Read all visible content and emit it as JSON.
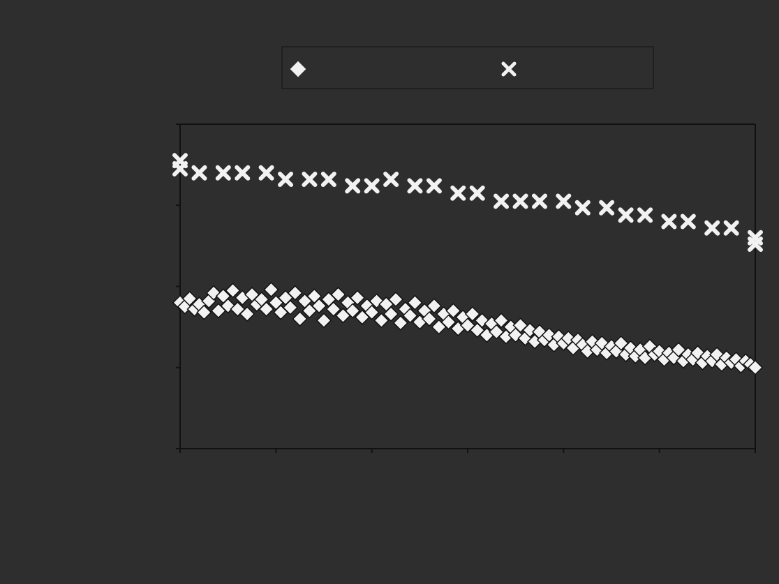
{
  "chart_data": {
    "type": "scatter",
    "title": "",
    "xlabel": "",
    "ylabel": "",
    "x_ticks": [],
    "y_ticks": [],
    "xlim": [
      0,
      120
    ],
    "ylim": [
      0,
      4
    ],
    "grid": false,
    "legend_position": "top",
    "legend_box": true,
    "colors": {
      "background": "#2e2e2e",
      "marker": "#f2f2f2",
      "axis": "#111111"
    },
    "series": [
      {
        "marker": "diamond",
        "points": [
          [
            0,
            1.8
          ],
          [
            1,
            1.75
          ],
          [
            2,
            1.85
          ],
          [
            3,
            1.72
          ],
          [
            4,
            1.78
          ],
          [
            5,
            1.68
          ],
          [
            6,
            1.82
          ],
          [
            7,
            1.92
          ],
          [
            8,
            1.7
          ],
          [
            9,
            1.88
          ],
          [
            10,
            1.76
          ],
          [
            11,
            1.95
          ],
          [
            12,
            1.72
          ],
          [
            13,
            1.86
          ],
          [
            14,
            1.66
          ],
          [
            15,
            1.9
          ],
          [
            16,
            1.78
          ],
          [
            17,
            1.84
          ],
          [
            18,
            1.72
          ],
          [
            19,
            1.96
          ],
          [
            20,
            1.8
          ],
          [
            21,
            1.68
          ],
          [
            22,
            1.86
          ],
          [
            23,
            1.74
          ],
          [
            24,
            1.92
          ],
          [
            25,
            1.6
          ],
          [
            26,
            1.82
          ],
          [
            27,
            1.7
          ],
          [
            28,
            1.88
          ],
          [
            29,
            1.76
          ],
          [
            30,
            1.58
          ],
          [
            31,
            1.84
          ],
          [
            32,
            1.72
          ],
          [
            33,
            1.9
          ],
          [
            34,
            1.64
          ],
          [
            35,
            1.8
          ],
          [
            36,
            1.7
          ],
          [
            37,
            1.86
          ],
          [
            38,
            1.62
          ],
          [
            39,
            1.76
          ],
          [
            40,
            1.68
          ],
          [
            41,
            1.82
          ],
          [
            42,
            1.58
          ],
          [
            43,
            1.78
          ],
          [
            44,
            1.66
          ],
          [
            45,
            1.84
          ],
          [
            46,
            1.55
          ],
          [
            47,
            1.72
          ],
          [
            48,
            1.64
          ],
          [
            49,
            1.8
          ],
          [
            50,
            1.56
          ],
          [
            51,
            1.7
          ],
          [
            52,
            1.6
          ],
          [
            53,
            1.76
          ],
          [
            54,
            1.5
          ],
          [
            55,
            1.66
          ],
          [
            56,
            1.56
          ],
          [
            57,
            1.7
          ],
          [
            58,
            1.48
          ],
          [
            59,
            1.62
          ],
          [
            60,
            1.52
          ],
          [
            61,
            1.66
          ],
          [
            62,
            1.46
          ],
          [
            63,
            1.58
          ],
          [
            64,
            1.4
          ],
          [
            65,
            1.54
          ],
          [
            66,
            1.44
          ],
          [
            67,
            1.58
          ],
          [
            68,
            1.38
          ],
          [
            69,
            1.5
          ],
          [
            70,
            1.4
          ],
          [
            71,
            1.52
          ],
          [
            72,
            1.36
          ],
          [
            73,
            1.46
          ],
          [
            74,
            1.32
          ],
          [
            75,
            1.44
          ],
          [
            76,
            1.34
          ],
          [
            77,
            1.4
          ],
          [
            78,
            1.28
          ],
          [
            79,
            1.38
          ],
          [
            80,
            1.3
          ],
          [
            81,
            1.36
          ],
          [
            82,
            1.24
          ],
          [
            83,
            1.34
          ],
          [
            84,
            1.28
          ],
          [
            85,
            1.2
          ],
          [
            86,
            1.32
          ],
          [
            87,
            1.22
          ],
          [
            88,
            1.3
          ],
          [
            89,
            1.18
          ],
          [
            90,
            1.26
          ],
          [
            91,
            1.2
          ],
          [
            92,
            1.3
          ],
          [
            93,
            1.16
          ],
          [
            94,
            1.24
          ],
          [
            95,
            1.14
          ],
          [
            96,
            1.22
          ],
          [
            97,
            1.12
          ],
          [
            98,
            1.26
          ],
          [
            99,
            1.16
          ],
          [
            100,
            1.2
          ],
          [
            101,
            1.1
          ],
          [
            102,
            1.18
          ],
          [
            103,
            1.12
          ],
          [
            104,
            1.22
          ],
          [
            105,
            1.08
          ],
          [
            106,
            1.16
          ],
          [
            107,
            1.1
          ],
          [
            108,
            1.18
          ],
          [
            109,
            1.06
          ],
          [
            110,
            1.14
          ],
          [
            111,
            1.08
          ],
          [
            112,
            1.16
          ],
          [
            113,
            1.04
          ],
          [
            114,
            1.12
          ],
          [
            115,
            1.06
          ],
          [
            116,
            1.1
          ],
          [
            117,
            1.02
          ],
          [
            118,
            1.08
          ],
          [
            119,
            1.04
          ],
          [
            120,
            1.0
          ]
        ]
      },
      {
        "marker": "x",
        "points": [
          [
            0,
            3.45
          ],
          [
            0,
            3.55
          ],
          [
            4,
            3.4
          ],
          [
            9,
            3.4
          ],
          [
            13,
            3.4
          ],
          [
            18,
            3.4
          ],
          [
            22,
            3.32
          ],
          [
            27,
            3.32
          ],
          [
            31,
            3.32
          ],
          [
            36,
            3.24
          ],
          [
            40,
            3.24
          ],
          [
            44,
            3.32
          ],
          [
            49,
            3.24
          ],
          [
            53,
            3.24
          ],
          [
            58,
            3.15
          ],
          [
            62,
            3.15
          ],
          [
            67,
            3.05
          ],
          [
            71,
            3.05
          ],
          [
            75,
            3.05
          ],
          [
            80,
            3.05
          ],
          [
            84,
            2.97
          ],
          [
            89,
            2.97
          ],
          [
            93,
            2.88
          ],
          [
            97,
            2.88
          ],
          [
            102,
            2.8
          ],
          [
            106,
            2.8
          ],
          [
            111,
            2.72
          ],
          [
            115,
            2.72
          ],
          [
            120,
            2.6
          ],
          [
            120,
            2.52
          ]
        ]
      }
    ]
  }
}
